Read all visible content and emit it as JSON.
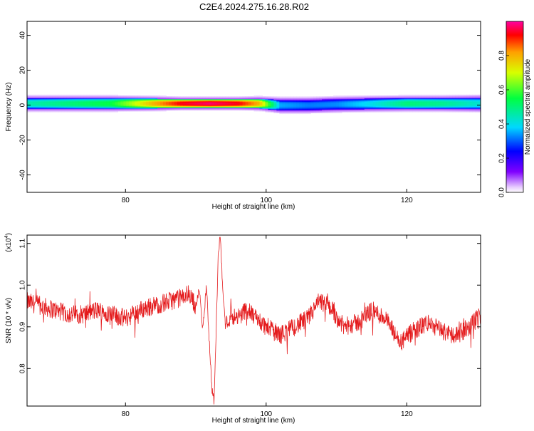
{
  "title": "C2E4.2024.275.16.28.R02",
  "colors": {
    "line": "#e41a1c",
    "axis": "#000000",
    "background": "#ffffff"
  },
  "chart_data": [
    {
      "type": "heatmap",
      "xlabel": "Height of straight line (km)",
      "ylabel": "Frequency (Hz)",
      "xlim": [
        66,
        130.5
      ],
      "ylim": [
        -50,
        48
      ],
      "x_ticks": [
        "80",
        "100",
        "120"
      ],
      "x_tick_values": [
        80,
        100,
        120
      ],
      "y_ticks": [
        "40",
        "20",
        "0",
        "-20",
        "-40"
      ],
      "y_tick_values": [
        40,
        20,
        0,
        -20,
        -40
      ],
      "bands": [
        {
          "x": 66,
          "center": 1.0,
          "halfwidth": 3.0,
          "amplitude": 0.45
        },
        {
          "x": 72,
          "center": 1.0,
          "halfwidth": 3.0,
          "amplitude": 0.5
        },
        {
          "x": 78,
          "center": 1.0,
          "halfwidth": 3.0,
          "amplitude": 0.55
        },
        {
          "x": 84,
          "center": 1.0,
          "halfwidth": 2.8,
          "amplitude": 0.8
        },
        {
          "x": 88,
          "center": 1.0,
          "halfwidth": 2.5,
          "amplitude": 0.93
        },
        {
          "x": 92,
          "center": 1.0,
          "halfwidth": 2.5,
          "amplitude": 0.97
        },
        {
          "x": 96,
          "center": 1.0,
          "halfwidth": 2.5,
          "amplitude": 0.93
        },
        {
          "x": 99,
          "center": 1.0,
          "halfwidth": 2.7,
          "amplitude": 0.8
        },
        {
          "x": 102,
          "center": 0.0,
          "halfwidth": 3.0,
          "amplitude": 0.35
        },
        {
          "x": 106,
          "center": 0.0,
          "halfwidth": 3.0,
          "amplitude": 0.32
        },
        {
          "x": 110,
          "center": 0.5,
          "halfwidth": 3.0,
          "amplitude": 0.33
        },
        {
          "x": 115,
          "center": 0.8,
          "halfwidth": 3.0,
          "amplitude": 0.4
        },
        {
          "x": 120,
          "center": 1.0,
          "halfwidth": 3.0,
          "amplitude": 0.5
        },
        {
          "x": 125,
          "center": 1.0,
          "halfwidth": 3.0,
          "amplitude": 0.48
        },
        {
          "x": 130.5,
          "center": 1.0,
          "halfwidth": 3.2,
          "amplitude": 0.42
        }
      ],
      "colorbar": {
        "label": "Normalized spectral amplitude",
        "range": [
          0,
          1
        ],
        "ticks": [
          "0.0",
          "0.2",
          "0.4",
          "0.6",
          "0.8"
        ],
        "tick_values": [
          0.0,
          0.2,
          0.4,
          0.6,
          0.8
        ]
      }
    },
    {
      "type": "line",
      "xlabel": "Height of straight line (km)",
      "ylabel": "SNR (10 * v/v)",
      "scale_label": "(x10",
      "scale_exponent": "4",
      "scale_suffix": ")",
      "xlim": [
        66,
        130.5
      ],
      "ylim": [
        0.71,
        1.12
      ],
      "x_ticks": [
        "80",
        "100",
        "120"
      ],
      "x_tick_values": [
        80,
        100,
        120
      ],
      "y_ticks": [
        "1.1",
        "1.0",
        "0.9",
        "0.8"
      ],
      "y_tick_values": [
        1.1,
        1.0,
        0.9,
        0.8
      ],
      "series": [
        {
          "x": [
            66,
            68,
            70,
            72,
            74,
            76,
            78,
            80,
            82,
            84,
            86,
            88,
            89,
            90,
            90.5,
            91,
            91.5,
            92,
            92.3,
            92.6,
            92.9,
            93.2,
            93.5,
            93.8,
            94.2,
            95,
            96,
            97,
            98,
            100,
            102,
            104,
            106,
            107.5,
            109,
            111,
            113,
            115,
            117,
            119,
            121,
            123,
            125,
            127,
            129,
            130.5
          ],
          "y": [
            0.96,
            0.95,
            0.94,
            0.93,
            0.93,
            0.94,
            0.93,
            0.92,
            0.94,
            0.95,
            0.96,
            0.97,
            0.98,
            0.95,
            0.99,
            0.89,
            1.0,
            0.84,
            0.75,
            0.72,
            0.9,
            1.08,
            1.12,
            1.0,
            0.9,
            0.93,
            0.92,
            0.94,
            0.93,
            0.9,
            0.88,
            0.9,
            0.92,
            0.96,
            0.95,
            0.9,
            0.91,
            0.94,
            0.92,
            0.86,
            0.89,
            0.91,
            0.89,
            0.88,
            0.9,
            0.93
          ]
        }
      ]
    }
  ]
}
